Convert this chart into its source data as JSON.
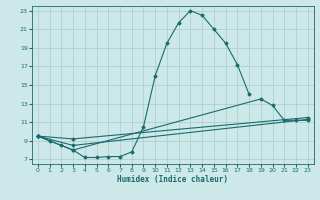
{
  "title": "",
  "xlabel": "Humidex (Indice chaleur)",
  "xlim": [
    -0.5,
    23.5
  ],
  "ylim": [
    6.5,
    23.5
  ],
  "xticks": [
    0,
    1,
    2,
    3,
    4,
    5,
    6,
    7,
    8,
    9,
    10,
    11,
    12,
    13,
    14,
    15,
    16,
    17,
    18,
    19,
    20,
    21,
    22,
    23
  ],
  "yticks": [
    7,
    9,
    11,
    13,
    15,
    17,
    19,
    21,
    23
  ],
  "bg_color": "#cde8e8",
  "line_color": "#1a6b6b",
  "grid_color": "#aacccc",
  "main_curve_x": [
    0,
    1,
    2,
    3,
    4,
    5,
    6,
    7,
    8,
    9,
    10,
    11,
    12,
    13,
    14,
    15,
    16,
    17,
    18
  ],
  "main_curve_y": [
    9.5,
    9.0,
    8.5,
    8.0,
    7.2,
    7.2,
    7.3,
    7.3,
    7.8,
    10.5,
    16.0,
    19.5,
    21.7,
    23.0,
    22.5,
    21.0,
    19.5,
    17.2,
    14.0
  ],
  "line2_x": [
    0,
    3,
    19,
    20,
    21,
    22,
    23
  ],
  "line2_y": [
    9.5,
    8.0,
    13.5,
    12.8,
    11.2,
    11.2,
    11.2
  ],
  "line3_x": [
    0,
    3,
    23
  ],
  "line3_y": [
    9.5,
    8.5,
    11.3
  ],
  "line4_x": [
    0,
    3,
    23
  ],
  "line4_y": [
    9.5,
    9.2,
    11.5
  ],
  "marker_style": "D",
  "marker_size": 1.5,
  "line_width": 0.8
}
